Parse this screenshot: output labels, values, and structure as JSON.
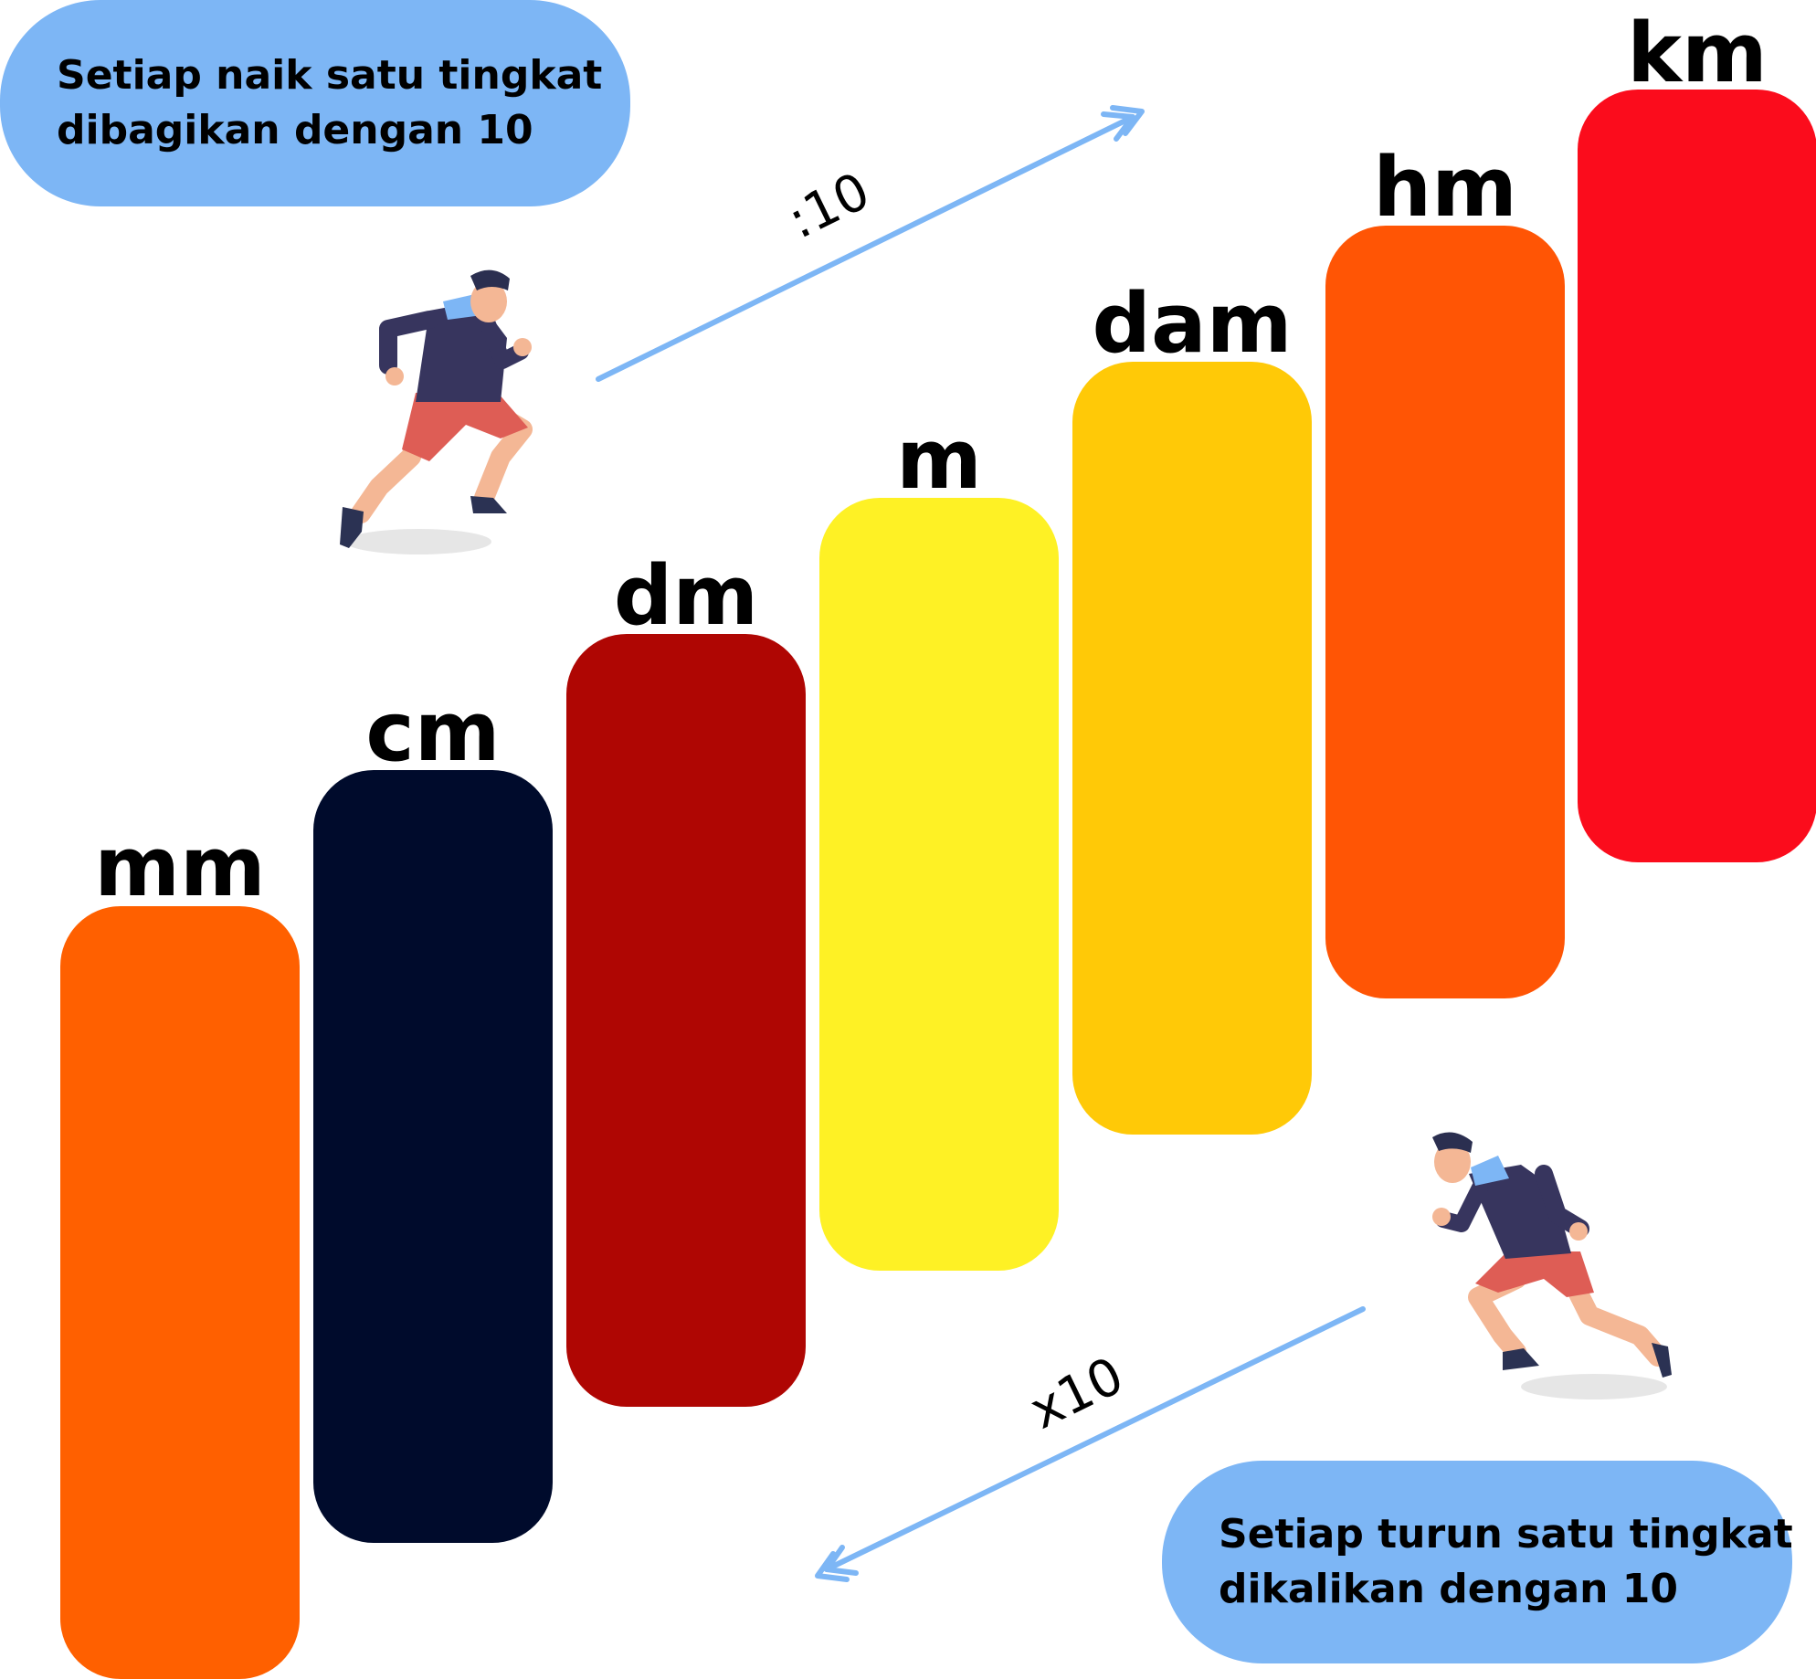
{
  "notes": {
    "up": {
      "line1": "Setiap naik satu tingkat",
      "line2": "dibagikan dengan 10"
    },
    "down": {
      "line1": "Setiap turun satu tingkat",
      "line2": "dikalikan dengan 10"
    }
  },
  "operations": {
    "up": ":10",
    "down": "x10"
  },
  "steps": [
    {
      "unit": "mm",
      "color": "#ff6000"
    },
    {
      "unit": "cm",
      "color": "#000b2c"
    },
    {
      "unit": "dm",
      "color": "#af0603"
    },
    {
      "unit": "m",
      "color": "#fef125"
    },
    {
      "unit": "dam",
      "color": "#ffc907"
    },
    {
      "unit": "hm",
      "color": "#ff5505"
    },
    {
      "unit": "km",
      "color": "#fb0c1c"
    }
  ],
  "colors": {
    "note_bg": "#7db6f5",
    "arrow": "#7db6f5"
  },
  "icons": [
    "runner-climbing-icon",
    "runner-descending-icon"
  ]
}
